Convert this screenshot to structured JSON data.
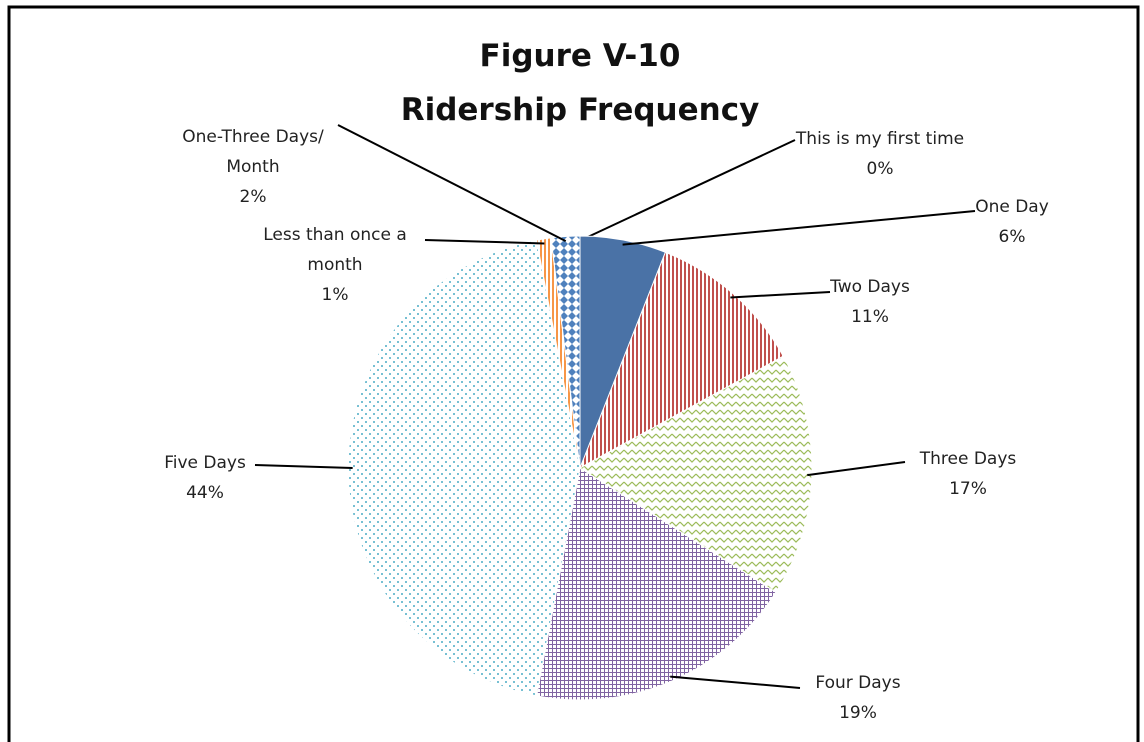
{
  "chart_data": {
    "type": "pie",
    "title": "Figure V-10",
    "subtitle": "Ridership Frequency",
    "categories": [
      "This is my first time",
      "One Day",
      "Two Days",
      "Three Days",
      "Four Days",
      "Five Days",
      "Less than once a month",
      "One-Three Days/ Month"
    ],
    "values": [
      0,
      6,
      11,
      17,
      19,
      44,
      1,
      2
    ],
    "value_labels": [
      "0%",
      "6%",
      "11%",
      "17%",
      "19%",
      "44%",
      "1%",
      "2%"
    ],
    "colors": [
      "#4f81bd",
      "#4a72a6",
      "#c0504d",
      "#9bbb59",
      "#8064a2",
      "#4bacc6",
      "#f79646",
      "#4f81bd"
    ]
  }
}
